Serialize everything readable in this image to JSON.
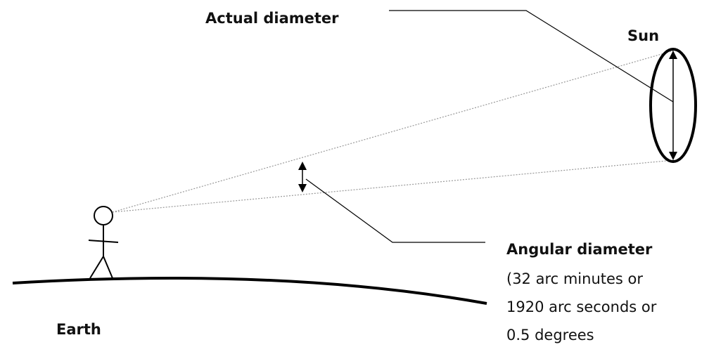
{
  "labels": {
    "actual": "Actual diameter",
    "sun": "Sun",
    "angular": "Angular diameter",
    "note1": "(32 arc minutes or",
    "note2": "1920 arc seconds or",
    "note3": "0.5 degrees",
    "earth": "Earth"
  }
}
